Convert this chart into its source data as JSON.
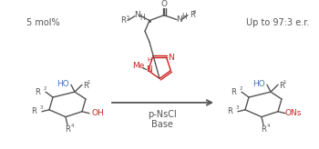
{
  "bg_color": "#ffffff",
  "text_color_black": "#555555",
  "text_color_blue": "#4477bb",
  "text_color_red": "#cc2222",
  "fig_width": 3.5,
  "fig_height": 1.64,
  "dpi": 100,
  "mol_percent": "5 mol%",
  "up_to": "Up to 97:3 e.r.",
  "reagents": "p-NsCl",
  "base": "Base"
}
